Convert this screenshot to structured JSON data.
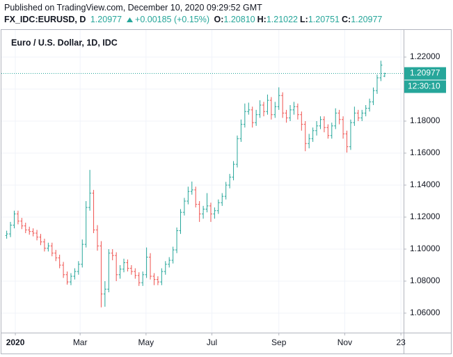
{
  "chart_data": {
    "type": "ohlc",
    "published": "Published on TradingView.com, December 10, 2020 09:29:52 GMT",
    "title": "Euro / U.S. Dollar, 1D, IDC",
    "quote": {
      "symbol": "FX_IDC:EURUSD, D",
      "last": "1.20977",
      "change": "+0.00185 (+0.15%)",
      "ohlc": [
        {
          "label": "O:",
          "value": "1.20810"
        },
        {
          "label": "H:",
          "value": "1.21022"
        },
        {
          "label": "L:",
          "value": "1.20751"
        },
        {
          "label": "C:",
          "value": "1.20977"
        }
      ],
      "countdown": "12:30:10"
    },
    "up_color": "#26a69a",
    "down_color": "#ef5350",
    "grid": true,
    "xlim": [
      -1.77,
      105
    ],
    "xticks": [
      {
        "value": 2.29,
        "label": "2020"
      },
      {
        "value": 19.43,
        "label": "Mar"
      },
      {
        "value": 36.86,
        "label": "May"
      },
      {
        "value": 54.29,
        "label": "Jul"
      },
      {
        "value": 72,
        "label": "Sep"
      },
      {
        "value": 89.43,
        "label": "Nov"
      },
      {
        "value": 104.29,
        "label": "23"
      }
    ],
    "ylim": [
      1.0478,
      1.2374
    ],
    "yticks": [
      {
        "value": 1.06,
        "label": "1.06000"
      },
      {
        "value": 1.08,
        "label": "1.08000"
      },
      {
        "value": 1.1,
        "label": "1.10000"
      },
      {
        "value": 1.12,
        "label": "1.12000"
      },
      {
        "value": 1.14,
        "label": "1.14000"
      },
      {
        "value": 1.16,
        "label": "1.16000"
      },
      {
        "value": 1.18,
        "label": "1.18000"
      },
      {
        "value": 1.2,
        "label": "1.20000"
      },
      {
        "value": 1.22,
        "label": "1.22000"
      }
    ],
    "open": [
      1.1085,
      1.1095,
      1.115,
      1.122,
      1.1175,
      1.1145,
      1.112,
      1.111,
      1.11,
      1.1075,
      1.1045,
      1.1005,
      1.102,
      1.0975,
      1.0945,
      1.09,
      1.084,
      1.0795,
      1.083,
      1.086,
      1.0905,
      1.103,
      1.126,
      1.135,
      1.112,
      1.102,
      1.072,
      1.075,
      1.0975,
      1.096,
      1.084,
      1.0875,
      1.0915,
      1.088,
      1.086,
      1.0835,
      1.079,
      1.084,
      1.095,
      1.083,
      1.081,
      1.0795,
      1.086,
      1.0905,
      1.093,
      1.0995,
      1.1115,
      1.123,
      1.13,
      1.136,
      1.137,
      1.128,
      1.122,
      1.125,
      1.127,
      1.122,
      1.124,
      1.129,
      1.133,
      1.14,
      1.145,
      1.153,
      1.169,
      1.178,
      1.186,
      1.187,
      1.179,
      1.184,
      1.19,
      1.186,
      1.193,
      1.184,
      1.189,
      1.196,
      1.185,
      1.182,
      1.187,
      1.189,
      1.184,
      1.178,
      1.166,
      1.169,
      1.174,
      1.177,
      1.181,
      1.176,
      1.171,
      1.177,
      1.185,
      1.181,
      1.172,
      1.164,
      1.179,
      1.185,
      1.182,
      1.185,
      1.188,
      1.192,
      1.199,
      1.207,
      1.2081
    ],
    "high": [
      1.1115,
      1.117,
      1.124,
      1.124,
      1.1195,
      1.1165,
      1.114,
      1.113,
      1.112,
      1.1095,
      1.1065,
      1.104,
      1.104,
      1.0995,
      1.0965,
      1.092,
      1.086,
      1.085,
      1.088,
      1.0925,
      1.106,
      1.13,
      1.1495,
      1.137,
      1.115,
      1.105,
      1.08,
      1.1,
      1.1,
      1.098,
      1.09,
      1.094,
      1.0935,
      1.09,
      1.088,
      1.0855,
      1.086,
      1.101,
      1.0975,
      1.085,
      1.083,
      1.088,
      1.0925,
      1.095,
      1.1015,
      1.1135,
      1.125,
      1.132,
      1.139,
      1.1422,
      1.139,
      1.13,
      1.127,
      1.135,
      1.129,
      1.126,
      1.131,
      1.135,
      1.142,
      1.147,
      1.155,
      1.171,
      1.181,
      1.191,
      1.1915,
      1.189,
      1.187,
      1.193,
      1.192,
      1.1966,
      1.195,
      1.192,
      1.2011,
      1.198,
      1.187,
      1.19,
      1.192,
      1.191,
      1.186,
      1.18,
      1.172,
      1.176,
      1.18,
      1.183,
      1.183,
      1.178,
      1.179,
      1.188,
      1.187,
      1.183,
      1.174,
      1.181,
      1.189,
      1.187,
      1.187,
      1.19,
      1.194,
      1.201,
      1.209,
      1.2177,
      1.21022
    ],
    "low": [
      1.1065,
      1.1075,
      1.113,
      1.1155,
      1.1125,
      1.11,
      1.109,
      1.108,
      1.1055,
      1.1025,
      1.0985,
      1.0985,
      1.0955,
      1.0925,
      1.088,
      1.082,
      1.0778,
      1.0775,
      1.081,
      1.084,
      1.0885,
      1.101,
      1.124,
      1.11,
      1.099,
      1.0636,
      1.064,
      1.073,
      1.093,
      1.08,
      1.0815,
      1.0855,
      1.086,
      1.084,
      1.0815,
      1.077,
      1.077,
      1.082,
      1.081,
      1.0775,
      1.0775,
      1.0775,
      1.084,
      1.0885,
      1.091,
      1.0975,
      1.1095,
      1.121,
      1.128,
      1.134,
      1.126,
      1.117,
      1.119,
      1.123,
      1.117,
      1.119,
      1.122,
      1.127,
      1.131,
      1.138,
      1.143,
      1.151,
      1.167,
      1.176,
      1.184,
      1.176,
      1.177,
      1.182,
      1.183,
      1.184,
      1.181,
      1.182,
      1.187,
      1.182,
      1.179,
      1.18,
      1.184,
      1.181,
      1.174,
      1.1612,
      1.163,
      1.167,
      1.171,
      1.175,
      1.173,
      1.169,
      1.169,
      1.175,
      1.178,
      1.169,
      1.1603,
      1.162,
      1.177,
      1.18,
      1.18,
      1.183,
      1.186,
      1.19,
      1.197,
      1.205,
      1.20751
    ],
    "close": [
      1.1095,
      1.115,
      1.122,
      1.1175,
      1.1145,
      1.112,
      1.111,
      1.11,
      1.1075,
      1.1045,
      1.1005,
      1.102,
      1.0975,
      1.0945,
      1.09,
      1.084,
      1.0795,
      1.083,
      1.086,
      1.0905,
      1.103,
      1.126,
      1.135,
      1.112,
      1.102,
      1.072,
      1.075,
      1.0975,
      1.096,
      1.084,
      1.0875,
      1.0915,
      1.088,
      1.086,
      1.0835,
      1.079,
      1.084,
      1.095,
      1.083,
      1.081,
      1.0795,
      1.086,
      1.0905,
      1.093,
      1.0995,
      1.1115,
      1.123,
      1.13,
      1.136,
      1.137,
      1.128,
      1.122,
      1.125,
      1.127,
      1.122,
      1.124,
      1.129,
      1.133,
      1.14,
      1.145,
      1.153,
      1.169,
      1.178,
      1.186,
      1.187,
      1.179,
      1.184,
      1.19,
      1.186,
      1.193,
      1.184,
      1.189,
      1.196,
      1.185,
      1.182,
      1.187,
      1.189,
      1.184,
      1.178,
      1.166,
      1.169,
      1.174,
      1.177,
      1.181,
      1.176,
      1.171,
      1.177,
      1.185,
      1.181,
      1.172,
      1.164,
      1.179,
      1.185,
      1.182,
      1.185,
      1.188,
      1.192,
      1.199,
      1.207,
      1.215,
      1.20977
    ]
  }
}
